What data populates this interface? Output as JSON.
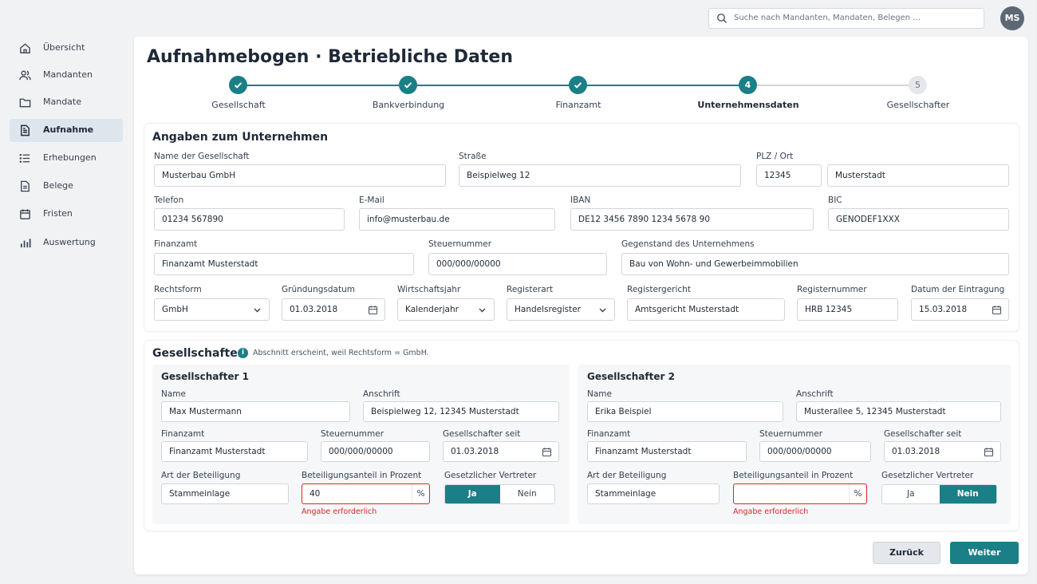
{
  "sidebar": {
    "items": [
      {
        "label": "Übersicht",
        "icon": "home-icon"
      },
      {
        "label": "Mandanten",
        "icon": "users-icon"
      },
      {
        "label": "Mandate",
        "icon": "folder-icon"
      },
      {
        "label": "Aufnahme",
        "icon": "document-icon",
        "active": true
      },
      {
        "label": "Erhebungen",
        "icon": "list-icon"
      },
      {
        "label": "Belege",
        "icon": "receipt-icon"
      },
      {
        "label": "Fristen",
        "icon": "calendar-icon"
      },
      {
        "label": "Auswertung",
        "icon": "chart-icon"
      }
    ]
  },
  "topbar": {
    "search_placeholder": "Suche nach Mandanten, Mandaten, Belegen …",
    "avatar_initials": "MS"
  },
  "page": {
    "title": "Aufnahmebogen · Betriebliche Daten"
  },
  "stepper": {
    "steps": [
      {
        "label": "Gesellschaft",
        "state": "done"
      },
      {
        "label": "Bankverbindung",
        "state": "done"
      },
      {
        "label": "Finanzamt",
        "state": "done"
      },
      {
        "label": "Unternehmensdaten",
        "state": "current",
        "number": "4"
      },
      {
        "label": "Gesellschafter",
        "state": "todo",
        "number": "5"
      }
    ]
  },
  "company": {
    "section_title": "Angaben zum Unternehmen",
    "name_label": "Name der Gesellschaft",
    "name_value": "Musterbau GmbH",
    "street_label": "Straße",
    "street_value": "Beispielweg 12",
    "plz_ort_label": "PLZ / Ort",
    "plz_value": "12345",
    "ort_value": "Musterstadt",
    "phone_label": "Telefon",
    "phone_value": "01234 567890",
    "email_label": "E-Mail",
    "email_value": "info@musterbau.de",
    "iban_label": "IBAN",
    "iban_value": "DE12 3456 7890 1234 5678 90",
    "bic_label": "BIC",
    "bic_value": "GENODEF1XXX",
    "finanzamt_label": "Finanzamt",
    "finanzamt_value": "Finanzamt Musterstadt",
    "steuernummer_label": "Steuernummer",
    "steuernummer_value": "000/000/00000",
    "gegenstand_label": "Gegenstand des Unternehmens",
    "gegenstand_value": "Bau von Wohn- und Gewerbeimmobilien",
    "rechtsform_label": "Rechtsform",
    "rechtsform_value": "GmbH",
    "gruendung_label": "Gründungsdatum",
    "gruendung_value": "01.03.2018",
    "wj_label": "Wirtschaftsjahr",
    "wj_value": "Kalenderjahr",
    "registerart_label": "Registerart",
    "registerart_value": "Handelsregister",
    "registergericht_label": "Registergericht",
    "registergericht_value": "Amtsgericht Musterstadt",
    "registernummer_label": "Registernummer",
    "registernummer_value": "HRB 12345",
    "eintragung_label": "Datum der Eintragung",
    "eintragung_value": "15.03.2018"
  },
  "shareholders": {
    "section_title": "Gesellschafter",
    "info_text": "Abschnitt erscheint, weil Rechtsform = GmbH.",
    "labels": {
      "name": "Name",
      "address": "Anschrift",
      "finanzamt": "Finanzamt",
      "steuernummer": "Steuernummer",
      "since": "Gesellschafter seit",
      "art": "Art der Beteiligung",
      "anteil": "Beteiligungsanteil in Prozent",
      "vertreter": "Gesetzlicher Vertreter",
      "percent": "%",
      "yes": "Ja",
      "no": "Nein",
      "error": "Angabe erforderlich"
    },
    "items": [
      {
        "title": "Gesellschafter 1",
        "name": "Max Mustermann",
        "address": "Beispielweg 12, 12345 Musterstadt",
        "finanzamt": "Finanzamt Musterstadt",
        "steuernummer": "000/000/00000",
        "since": "01.03.2018",
        "art": "Stammeinlage",
        "anteil": "40",
        "vertreter": "Ja"
      },
      {
        "title": "Gesellschafter 2",
        "name": "Erika Beispiel",
        "address": "Musterallee 5, 12345 Musterstadt",
        "finanzamt": "Finanzamt Musterstadt",
        "steuernummer": "000/000/00000",
        "since": "01.03.2018",
        "art": "Stammeinlage",
        "anteil": "",
        "vertreter": "Nein"
      }
    ]
  },
  "actions": {
    "back": "Zurück",
    "next": "Weiter"
  },
  "colors": {
    "accent": "#1a7f86",
    "error": "#dc2626"
  }
}
